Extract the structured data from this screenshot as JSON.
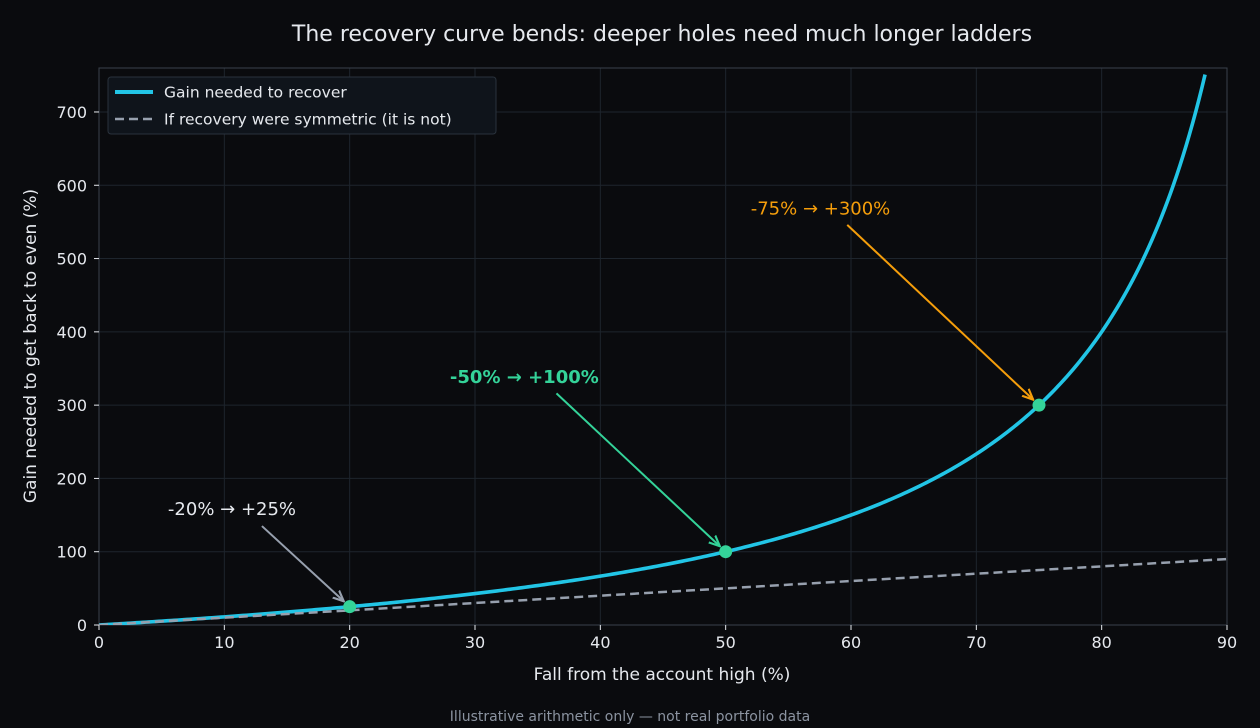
{
  "colors": {
    "background": "#0a0b0e",
    "grid": "#1e252d",
    "axis": "#3a424c",
    "text": "#e6e9ee",
    "curve": "#22c5e6",
    "symmetric": "#97a0ae",
    "marker": "#34d399",
    "ann_neutral": "#e6e9ee",
    "ann_green": "#34d399",
    "ann_orange": "#f59e0b",
    "arrow_neutral": "#97a0ae",
    "legend_bg": "#0f141b",
    "legend_border": "#2a323c",
    "footnote": "#8b93a0"
  },
  "chart_data": {
    "type": "line",
    "title": "The recovery curve bends: deeper holes need much longer ladders",
    "xlabel": "Fall from the account high (%)",
    "ylabel": "Gain needed to get back to even (%)",
    "xlim": [
      0,
      90
    ],
    "ylim": [
      0,
      760
    ],
    "xticks": [
      0,
      10,
      20,
      30,
      40,
      50,
      60,
      70,
      80,
      90
    ],
    "yticks": [
      0,
      100,
      200,
      300,
      400,
      500,
      600,
      700
    ],
    "grid": true,
    "legend_position": "top-left",
    "series": [
      {
        "name": "Gain needed to recover",
        "style": "solid",
        "x": [
          0,
          5,
          10,
          15,
          20,
          25,
          30,
          35,
          40,
          45,
          50,
          55,
          60,
          65,
          70,
          75,
          80,
          82,
          84,
          86,
          87,
          88,
          88.4
        ],
        "y": [
          0,
          5.3,
          11.1,
          17.6,
          25,
          33.3,
          42.9,
          53.8,
          66.7,
          81.8,
          100,
          122.2,
          150,
          185.7,
          233.3,
          300,
          400,
          455.6,
          525,
          614.3,
          669.2,
          733.3,
          760
        ]
      },
      {
        "name": "If recovery were symmetric (it is not)",
        "style": "dashed",
        "x": [
          0,
          90
        ],
        "y": [
          0,
          90
        ]
      }
    ],
    "markers": [
      {
        "x": 20,
        "y": 25
      },
      {
        "x": 50,
        "y": 100
      },
      {
        "x": 75,
        "y": 300
      }
    ],
    "annotations": [
      {
        "text": "-20% → +25%",
        "point": [
          20,
          25
        ],
        "text_at": [
          5.5,
          150
        ],
        "arrow_from": [
          13,
          135
        ],
        "tone": "neutral",
        "bold": false
      },
      {
        "text": "-50% → +100%",
        "point": [
          50,
          100
        ],
        "text_at": [
          28,
          330
        ],
        "arrow_from": [
          36.5,
          316
        ],
        "tone": "green",
        "bold": true
      },
      {
        "text": "-75% → +300%",
        "point": [
          75,
          300
        ],
        "text_at": [
          52,
          560
        ],
        "arrow_from": [
          59.7,
          546
        ],
        "tone": "orange",
        "bold": false
      }
    ]
  },
  "footnote": "Illustrative arithmetic only — not real portfolio data"
}
